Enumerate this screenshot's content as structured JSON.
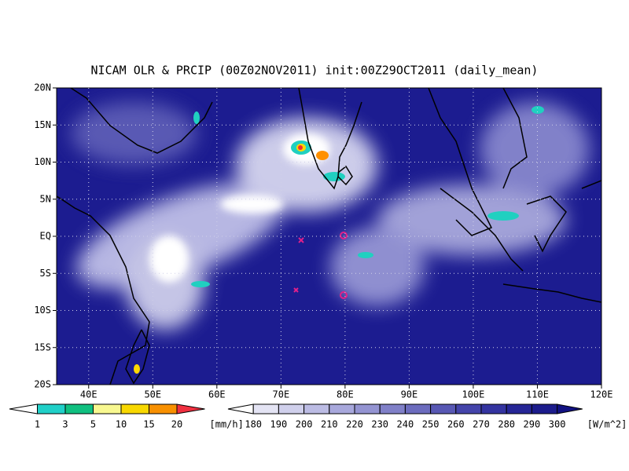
{
  "title": "NICAM OLR & PRCIP (00Z02NOV2011) init:00Z29OCT2011 (daily_mean)",
  "lat_labels": [
    "20N",
    "15N",
    "10N",
    "5N",
    "EQ",
    "5S",
    "10S",
    "15S",
    "20S"
  ],
  "lon_labels": [
    "40E",
    "50E",
    "60E",
    "70E",
    "80E",
    "90E",
    "100E",
    "110E",
    "120E"
  ],
  "precip_bar": {
    "labels": [
      "1",
      "3",
      "5",
      "10",
      "15",
      "20"
    ],
    "unit": "[mm/h]"
  },
  "olr_bar": {
    "labels": [
      "180",
      "190",
      "200",
      "210",
      "220",
      "230",
      "240",
      "250",
      "260",
      "270",
      "280",
      "290",
      "300"
    ],
    "unit": "[W/m^2]"
  }
}
